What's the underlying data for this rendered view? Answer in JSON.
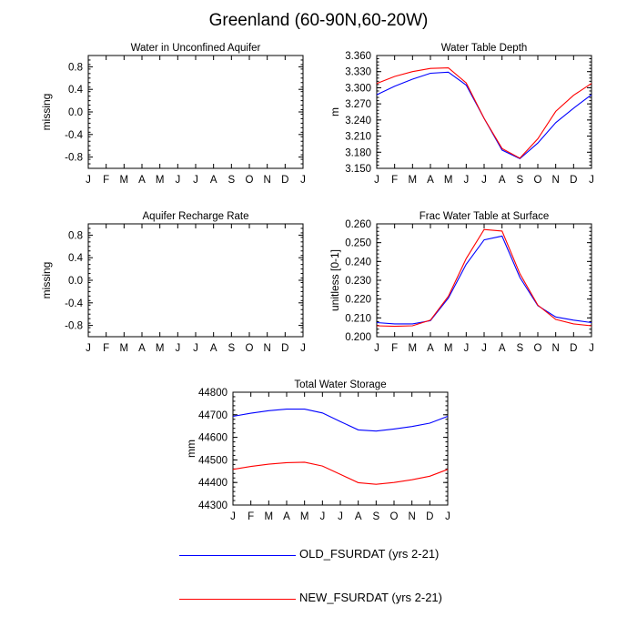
{
  "title": "Greenland (60-90N,60-20W)",
  "colors": {
    "old": "#0000ff",
    "new": "#ff0000",
    "axis": "#000000"
  },
  "legend": [
    {
      "label": "OLD_FSURDAT (yrs 2-21)",
      "color": "#0000ff"
    },
    {
      "label": "NEW_FSURDAT (yrs 2-21)",
      "color": "#ff0000"
    }
  ],
  "chart_data": [
    {
      "type": "line",
      "title": "Water in Unconfined Aquifer",
      "xlabel": "",
      "ylabel": "missing",
      "categories": [
        "J",
        "F",
        "M",
        "A",
        "M",
        "J",
        "J",
        "A",
        "S",
        "O",
        "N",
        "D",
        "J"
      ],
      "ylim": [
        -1.0,
        1.0
      ],
      "yticks": [
        -0.8,
        -0.4,
        0.0,
        0.4,
        0.8
      ],
      "ytick_labels": [
        "-0.8",
        "-0.4",
        "0.0",
        "0.4",
        "0.8"
      ],
      "series": []
    },
    {
      "type": "line",
      "title": "Water Table Depth",
      "xlabel": "",
      "ylabel": "m",
      "categories": [
        "J",
        "F",
        "M",
        "A",
        "M",
        "J",
        "J",
        "A",
        "S",
        "O",
        "N",
        "D",
        "J"
      ],
      "ylim": [
        3.15,
        3.36
      ],
      "yticks": [
        3.15,
        3.18,
        3.21,
        3.24,
        3.27,
        3.3,
        3.33,
        3.36
      ],
      "ytick_labels": [
        "3.150",
        "3.180",
        "3.210",
        "3.240",
        "3.270",
        "3.300",
        "3.330",
        "3.360"
      ],
      "series": [
        {
          "color": "#0000ff",
          "values": [
            3.287,
            3.303,
            3.316,
            3.327,
            3.329,
            3.305,
            3.243,
            3.184,
            3.168,
            3.197,
            3.235,
            3.262,
            3.287
          ]
        },
        {
          "color": "#ff0000",
          "values": [
            3.308,
            3.321,
            3.33,
            3.336,
            3.337,
            3.309,
            3.243,
            3.187,
            3.169,
            3.205,
            3.256,
            3.286,
            3.308
          ]
        }
      ]
    },
    {
      "type": "line",
      "title": "Aquifer Recharge Rate",
      "xlabel": "",
      "ylabel": "missing",
      "categories": [
        "J",
        "F",
        "M",
        "A",
        "M",
        "J",
        "J",
        "A",
        "S",
        "O",
        "N",
        "D",
        "J"
      ],
      "ylim": [
        -1.0,
        1.0
      ],
      "yticks": [
        -0.8,
        -0.4,
        0.0,
        0.4,
        0.8
      ],
      "ytick_labels": [
        "-0.8",
        "-0.4",
        "0.0",
        "0.4",
        "0.8"
      ],
      "series": []
    },
    {
      "type": "line",
      "title": "Frac Water Table at Surface",
      "xlabel": "",
      "ylabel": "unitless [0-1]",
      "categories": [
        "J",
        "F",
        "M",
        "A",
        "M",
        "J",
        "J",
        "A",
        "S",
        "O",
        "N",
        "D",
        "J"
      ],
      "ylim": [
        0.2,
        0.26
      ],
      "yticks": [
        0.2,
        0.21,
        0.22,
        0.23,
        0.24,
        0.25,
        0.26
      ],
      "ytick_labels": [
        "0.200",
        "0.210",
        "0.220",
        "0.230",
        "0.240",
        "0.250",
        "0.260"
      ],
      "series": [
        {
          "color": "#0000ff",
          "values": [
            0.2075,
            0.2068,
            0.2068,
            0.2085,
            0.2205,
            0.2385,
            0.2515,
            0.2535,
            0.2315,
            0.2165,
            0.2105,
            0.2088,
            0.2075
          ]
        },
        {
          "color": "#ff0000",
          "values": [
            0.2058,
            0.2055,
            0.2058,
            0.2088,
            0.2215,
            0.2415,
            0.257,
            0.2562,
            0.2335,
            0.2168,
            0.2092,
            0.2068,
            0.2058
          ]
        }
      ]
    },
    {
      "type": "line",
      "title": "Total Water Storage",
      "xlabel": "",
      "ylabel": "mm",
      "categories": [
        "J",
        "F",
        "M",
        "A",
        "M",
        "J",
        "J",
        "A",
        "S",
        "O",
        "N",
        "D",
        "J"
      ],
      "ylim": [
        44300,
        44800
      ],
      "yticks": [
        44300,
        44400,
        44500,
        44600,
        44700,
        44800
      ],
      "ytick_labels": [
        "44300",
        "44400",
        "44500",
        "44600",
        "44700",
        "44800"
      ],
      "series": [
        {
          "color": "#0000ff",
          "values": [
            44693,
            44707,
            44718,
            44725,
            44725,
            44708,
            44670,
            44633,
            44628,
            44637,
            44648,
            44663,
            44693
          ]
        },
        {
          "color": "#ff0000",
          "values": [
            44458,
            44471,
            44481,
            44488,
            44490,
            44473,
            44436,
            44399,
            44392,
            44400,
            44412,
            44428,
            44458
          ]
        }
      ]
    }
  ]
}
